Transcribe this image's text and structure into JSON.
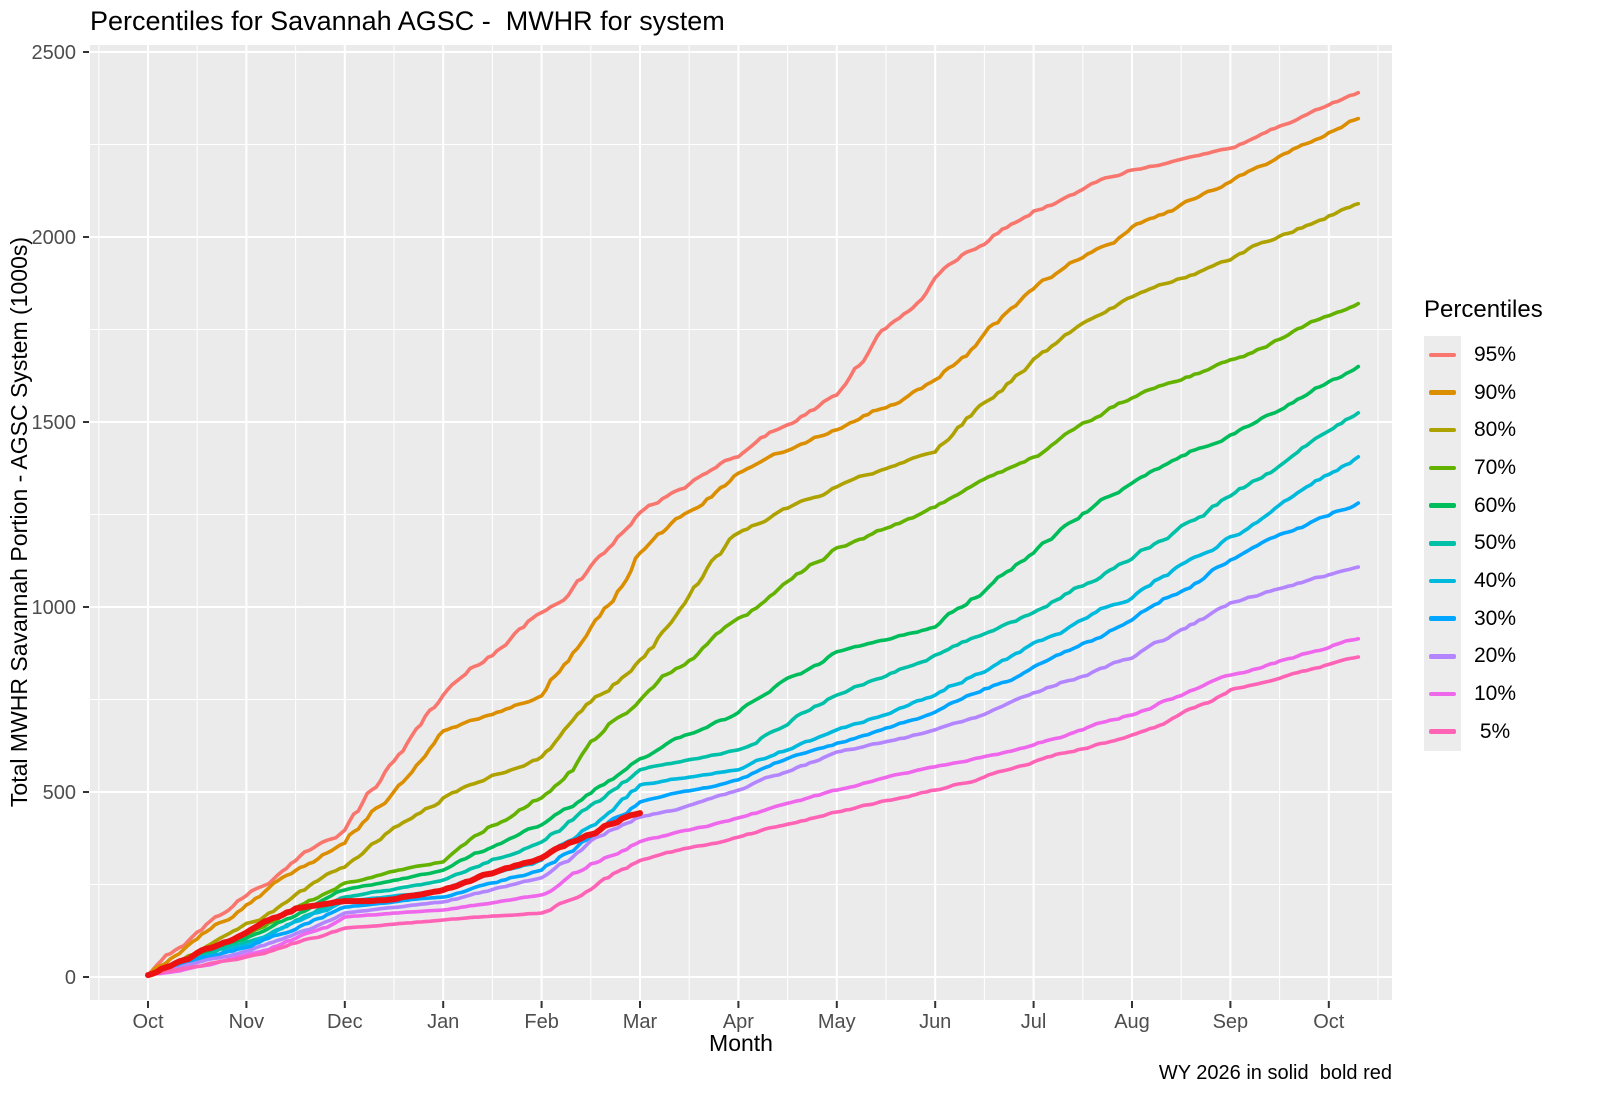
{
  "title": "Percentiles for Savannah AGSC -  MWHR for system",
  "axes": {
    "x_label": "Month",
    "y_label": "Total MWHR Savannah Portion - AGSC System (1000s)",
    "x_ticks": [
      "Oct",
      "Nov",
      "Dec",
      "Jan",
      "Feb",
      "Mar",
      "Apr",
      "May",
      "Jun",
      "Jul",
      "Aug",
      "Sep",
      "Oct"
    ],
    "y_ticks": [
      "0",
      "500",
      "1000",
      "1500",
      "2000",
      "2500"
    ]
  },
  "legend": {
    "title": "Percentiles"
  },
  "caption": "WY 2026 in solid  bold red",
  "colors": {
    "panel_background": "#EBEBEB",
    "gridline": "#FFFFFF",
    "tick_mark": "#333333",
    "tick_label": "#4D4D4D",
    "highlight_red": "#EE1111"
  },
  "chart_data": {
    "type": "line",
    "title": "Percentiles for Savannah AGSC -  MWHR for system",
    "xlabel": "Month",
    "ylabel": "Total MWHR Savannah Portion - AGSC System (1000s)",
    "x_labels": [
      "Oct",
      "Nov",
      "Dec",
      "Jan",
      "Feb",
      "Mar",
      "Apr",
      "May",
      "Jun",
      "Jul",
      "Aug",
      "Sep",
      "Oct"
    ],
    "ylim": [
      0,
      2500
    ],
    "grid": true,
    "legend_position": "right",
    "x": [
      0,
      1,
      2,
      3,
      4,
      5,
      6,
      7,
      8,
      9,
      10,
      11,
      12,
      12.3
    ],
    "series": [
      {
        "name": "95%",
        "color": "#F8766D",
        "values": [
          5,
          220,
          397,
          762,
          985,
          1255,
          1406,
          1573,
          1890,
          2070,
          2181,
          2240,
          2357,
          2390
        ]
      },
      {
        "name": "90%",
        "color": "#DB8E00",
        "values": [
          5,
          195,
          362,
          665,
          760,
          1146,
          1362,
          1479,
          1614,
          1860,
          2027,
          2149,
          2282,
          2320
        ]
      },
      {
        "name": "80%",
        "color": "#AEA200",
        "values": [
          5,
          145,
          297,
          484,
          595,
          857,
          1200,
          1325,
          1419,
          1670,
          1838,
          1938,
          2057,
          2090
        ]
      },
      {
        "name": "70%",
        "color": "#64B200",
        "values": [
          5,
          115,
          254,
          311,
          484,
          748,
          970,
          1160,
          1270,
          1405,
          1565,
          1668,
          1787,
          1820
        ]
      },
      {
        "name": "60%",
        "color": "#00BD5C",
        "values": [
          5,
          105,
          235,
          289,
          411,
          590,
          715,
          879,
          946,
          1146,
          1335,
          1465,
          1609,
          1650
        ]
      },
      {
        "name": "50%",
        "color": "#00C1A7",
        "values": [
          5,
          95,
          216,
          262,
          365,
          560,
          614,
          762,
          870,
          985,
          1130,
          1300,
          1476,
          1525
        ]
      },
      {
        "name": "40%",
        "color": "#00BADE",
        "values": [
          5,
          85,
          203,
          235,
          316,
          519,
          560,
          668,
          762,
          903,
          1024,
          1190,
          1358,
          1406
        ]
      },
      {
        "name": "30%",
        "color": "#00A6FF",
        "values": [
          5,
          80,
          189,
          216,
          289,
          473,
          533,
          632,
          716,
          838,
          965,
          1127,
          1247,
          1281
        ]
      },
      {
        "name": "20%",
        "color": "#B385FF",
        "values": [
          5,
          70,
          173,
          203,
          268,
          432,
          505,
          608,
          668,
          768,
          862,
          1011,
          1087,
          1108
        ]
      },
      {
        "name": "10%",
        "color": "#EF67EB",
        "values": [
          5,
          60,
          162,
          181,
          222,
          366,
          430,
          505,
          568,
          627,
          708,
          816,
          890,
          914
        ]
      },
      {
        "name": " 5%",
        "color": "#FF63B6",
        "values": [
          5,
          54,
          132,
          154,
          173,
          315,
          378,
          446,
          505,
          581,
          654,
          776,
          845,
          865
        ]
      }
    ],
    "highlight": {
      "name": "WY 2026",
      "color": "#EE1111",
      "x": [
        0,
        0.5,
        1,
        1.5,
        2,
        2.25,
        2.5,
        2.75,
        3,
        3.5,
        4,
        4.5,
        5
      ],
      "values": [
        5,
        65,
        120,
        185,
        205,
        205,
        210,
        222,
        235,
        280,
        322,
        385,
        443
      ]
    }
  }
}
